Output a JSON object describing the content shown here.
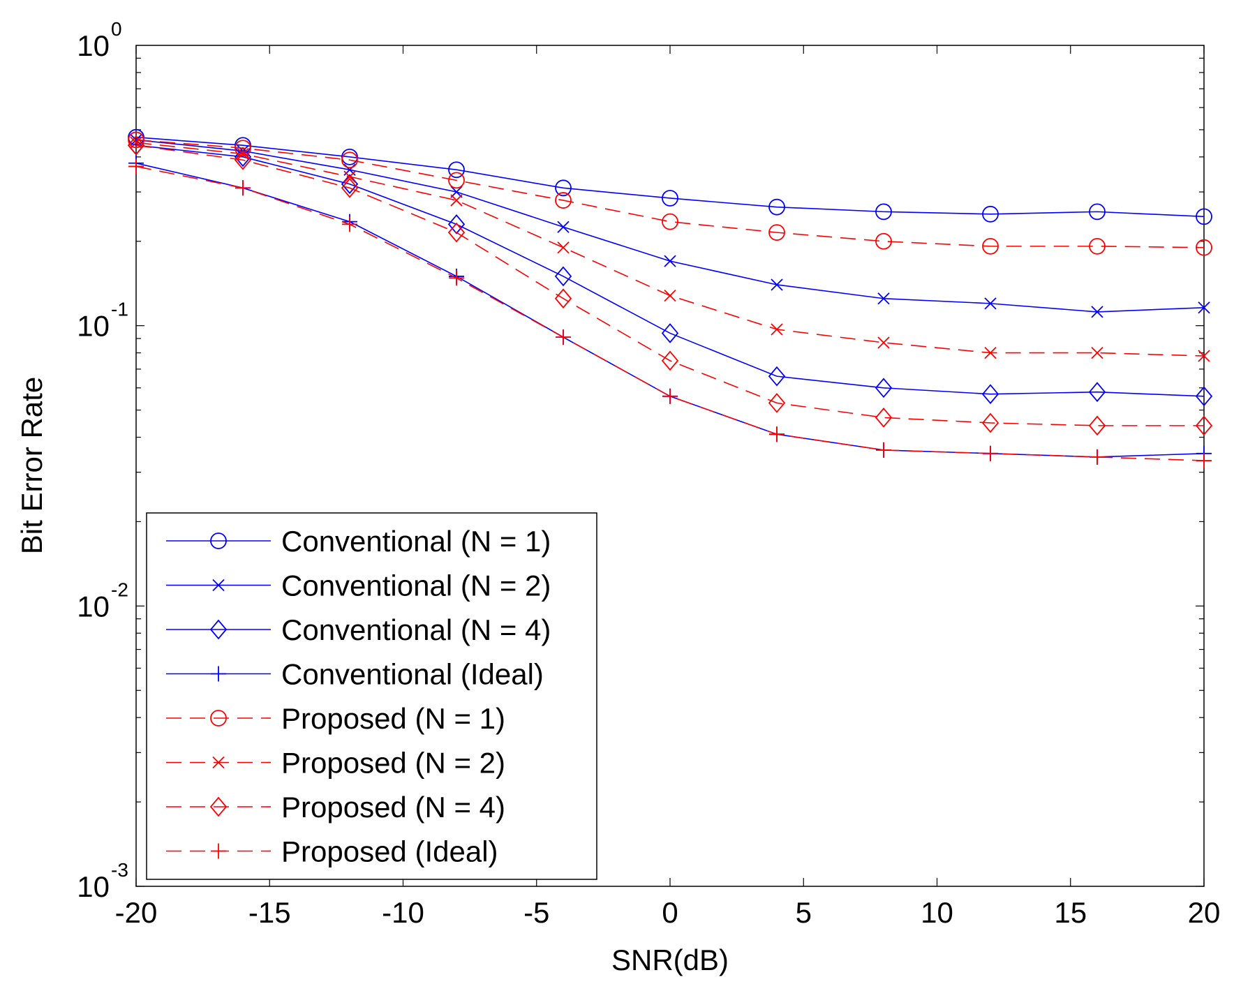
{
  "chart_data": {
    "type": "line",
    "title": "",
    "xlabel": "SNR(dB)",
    "ylabel": "Bit Error Rate",
    "xlim": [
      -20,
      20
    ],
    "ylim": [
      0.001,
      1
    ],
    "yscale": "log",
    "grid": false,
    "legend_position": "bottom-left",
    "x_ticks": [
      -20,
      -15,
      -10,
      -5,
      0,
      5,
      10,
      15,
      20
    ],
    "x_tick_labels": [
      "-20",
      "-15",
      "-10",
      "-5",
      "0",
      "5",
      "10",
      "15",
      "20"
    ],
    "y_ticks": [
      {
        "value": 1,
        "base": "10",
        "exp": "0"
      },
      {
        "value": 0.1,
        "base": "10",
        "exp": "-1"
      },
      {
        "value": 0.01,
        "base": "10",
        "exp": "-2"
      },
      {
        "value": 0.001,
        "base": "10",
        "exp": "-3"
      }
    ],
    "x": [
      -20,
      -16,
      -12,
      -8,
      -4,
      0,
      4,
      8,
      12,
      16,
      20
    ],
    "series": [
      {
        "name": "Conventional (N = 1)",
        "color": "#0000ff",
        "dash": "solid",
        "marker": "circle",
        "values": [
          0.47,
          0.44,
          0.4,
          0.36,
          0.31,
          0.285,
          0.265,
          0.255,
          0.25,
          0.255,
          0.245
        ]
      },
      {
        "name": "Conventional (N = 2)",
        "color": "#0000ff",
        "dash": "solid",
        "marker": "x",
        "values": [
          0.46,
          0.42,
          0.36,
          0.3,
          0.225,
          0.17,
          0.14,
          0.125,
          0.12,
          0.112,
          0.116
        ]
      },
      {
        "name": "Conventional (N = 4)",
        "color": "#0000ff",
        "dash": "solid",
        "marker": "diamond",
        "values": [
          0.44,
          0.4,
          0.32,
          0.23,
          0.15,
          0.094,
          0.066,
          0.06,
          0.057,
          0.058,
          0.056
        ]
      },
      {
        "name": "Conventional (Ideal)",
        "color": "#0000ff",
        "dash": "solid",
        "marker": "plus",
        "values": [
          0.38,
          0.31,
          0.235,
          0.15,
          0.091,
          0.056,
          0.041,
          0.036,
          0.035,
          0.034,
          0.035
        ]
      },
      {
        "name": "Proposed (N = 1)",
        "color": "#ff0000",
        "dash": "dashed",
        "marker": "circle",
        "values": [
          0.46,
          0.43,
          0.39,
          0.33,
          0.28,
          0.235,
          0.215,
          0.2,
          0.192,
          0.192,
          0.19
        ]
      },
      {
        "name": "Proposed (N = 2)",
        "color": "#ff0000",
        "dash": "dashed",
        "marker": "x",
        "values": [
          0.45,
          0.41,
          0.34,
          0.28,
          0.19,
          0.128,
          0.097,
          0.087,
          0.08,
          0.08,
          0.078
        ]
      },
      {
        "name": "Proposed (N = 4)",
        "color": "#ff0000",
        "dash": "dashed",
        "marker": "diamond",
        "values": [
          0.44,
          0.39,
          0.31,
          0.215,
          0.125,
          0.075,
          0.053,
          0.047,
          0.045,
          0.044,
          0.044
        ]
      },
      {
        "name": "Proposed (Ideal)",
        "color": "#ff0000",
        "dash": "dashed",
        "marker": "plus",
        "values": [
          0.37,
          0.31,
          0.23,
          0.148,
          0.091,
          0.056,
          0.041,
          0.036,
          0.035,
          0.034,
          0.033
        ]
      }
    ]
  }
}
